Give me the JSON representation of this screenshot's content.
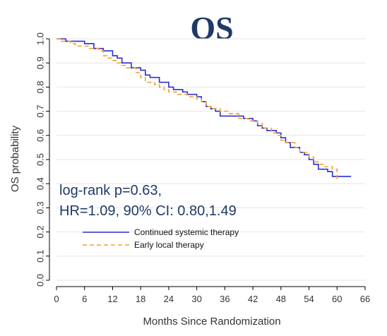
{
  "chart_data": {
    "type": "line",
    "title": "OS",
    "xlabel": "Months Since Randomization",
    "ylabel": "OS probability",
    "xlim": [
      0,
      66
    ],
    "ylim": [
      0,
      1.0
    ],
    "x_ticks": [
      0,
      6,
      12,
      18,
      24,
      30,
      36,
      42,
      48,
      54,
      60,
      66
    ],
    "y_ticks": [
      0.0,
      0.1,
      0.2,
      0.3,
      0.4,
      0.5,
      0.6,
      0.7,
      0.8,
      0.9,
      1.0
    ],
    "step": true,
    "annotations": [
      "log-rank p=0.63,",
      "HR=1.09, 90% CI: 0.80,1.49"
    ],
    "legend_position": "center-left",
    "series": [
      {
        "name": "Continued systemic therapy",
        "color": "#2a2fd4",
        "style": "solid",
        "points": [
          [
            0,
            1.0
          ],
          [
            2,
            0.99
          ],
          [
            6,
            0.98
          ],
          [
            8,
            0.96
          ],
          [
            10,
            0.95
          ],
          [
            12,
            0.93
          ],
          [
            13,
            0.92
          ],
          [
            14,
            0.9
          ],
          [
            16,
            0.88
          ],
          [
            18,
            0.87
          ],
          [
            19,
            0.85
          ],
          [
            20,
            0.84
          ],
          [
            22,
            0.82
          ],
          [
            24,
            0.8
          ],
          [
            25,
            0.79
          ],
          [
            27,
            0.78
          ],
          [
            28,
            0.77
          ],
          [
            30,
            0.76
          ],
          [
            31,
            0.74
          ],
          [
            32,
            0.72
          ],
          [
            33,
            0.71
          ],
          [
            34,
            0.7
          ],
          [
            35,
            0.68
          ],
          [
            38,
            0.68
          ],
          [
            40,
            0.67
          ],
          [
            42,
            0.66
          ],
          [
            43,
            0.64
          ],
          [
            44,
            0.63
          ],
          [
            45,
            0.62
          ],
          [
            47,
            0.61
          ],
          [
            48,
            0.59
          ],
          [
            49,
            0.57
          ],
          [
            50,
            0.55
          ],
          [
            52,
            0.53
          ],
          [
            53,
            0.52
          ],
          [
            54,
            0.5
          ],
          [
            55,
            0.48
          ],
          [
            56,
            0.46
          ],
          [
            58,
            0.45
          ],
          [
            59,
            0.43
          ],
          [
            63,
            0.43
          ]
        ]
      },
      {
        "name": "Early local therapy",
        "color": "#f0a030",
        "style": "dashed",
        "points": [
          [
            0,
            1.0
          ],
          [
            1,
            0.99
          ],
          [
            3,
            0.98
          ],
          [
            4,
            0.97
          ],
          [
            7,
            0.96
          ],
          [
            9,
            0.95
          ],
          [
            10,
            0.93
          ],
          [
            11,
            0.92
          ],
          [
            12,
            0.91
          ],
          [
            13,
            0.9
          ],
          [
            14,
            0.89
          ],
          [
            15,
            0.88
          ],
          [
            17,
            0.86
          ],
          [
            18,
            0.84
          ],
          [
            19,
            0.82
          ],
          [
            21,
            0.81
          ],
          [
            22,
            0.8
          ],
          [
            23,
            0.79
          ],
          [
            24,
            0.78
          ],
          [
            26,
            0.77
          ],
          [
            28,
            0.76
          ],
          [
            30,
            0.75
          ],
          [
            31,
            0.74
          ],
          [
            32,
            0.72
          ],
          [
            33,
            0.71
          ],
          [
            35,
            0.7
          ],
          [
            37,
            0.69
          ],
          [
            39,
            0.67
          ],
          [
            41,
            0.66
          ],
          [
            43,
            0.65
          ],
          [
            44,
            0.63
          ],
          [
            46,
            0.61
          ],
          [
            47,
            0.6
          ],
          [
            48,
            0.58
          ],
          [
            49,
            0.57
          ],
          [
            51,
            0.55
          ],
          [
            52,
            0.53
          ],
          [
            54,
            0.51
          ],
          [
            55,
            0.49
          ],
          [
            56,
            0.48
          ],
          [
            57,
            0.47
          ],
          [
            59,
            0.46
          ],
          [
            60,
            0.41
          ]
        ]
      }
    ]
  }
}
